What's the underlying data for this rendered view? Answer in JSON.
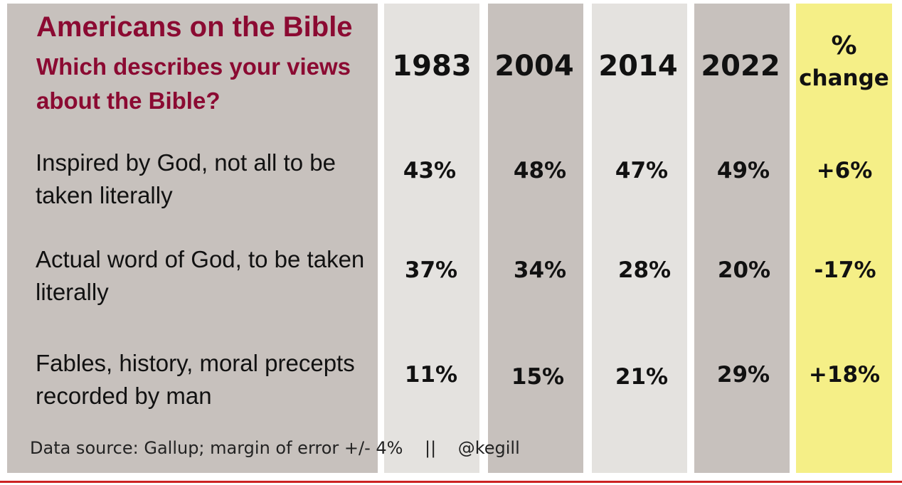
{
  "chart_data": {
    "type": "table",
    "title": "Americans on the Bible",
    "subtitle": "Which describes your views about the Bible?",
    "columns": [
      "1983",
      "2004",
      "2014",
      "2022"
    ],
    "change_header": {
      "symbol": "%",
      "word": "change"
    },
    "rows": [
      {
        "label": "Inspired by God, not all to be taken literally",
        "values": [
          "43%",
          "48%",
          "47%",
          "49%"
        ],
        "change": "+6%"
      },
      {
        "label": "Actual word of God, to be taken literally",
        "values": [
          "37%",
          "34%",
          "28%",
          "20%"
        ],
        "change": "-17%"
      },
      {
        "label": "Fables, history, moral precepts recorded by man",
        "values": [
          "11%",
          "15%",
          "21%",
          "29%"
        ],
        "change": "+18%"
      }
    ],
    "source": "Data source: Gallup; margin of error +/- 4%",
    "separator": "||",
    "handle": "@kegill"
  },
  "colors": {
    "title": "#8b0a32",
    "dark_panel": "#c7c1bd",
    "light_panel": "#e4e2df",
    "change_panel": "#f5ef87",
    "bottom_line": "#cc2222"
  }
}
